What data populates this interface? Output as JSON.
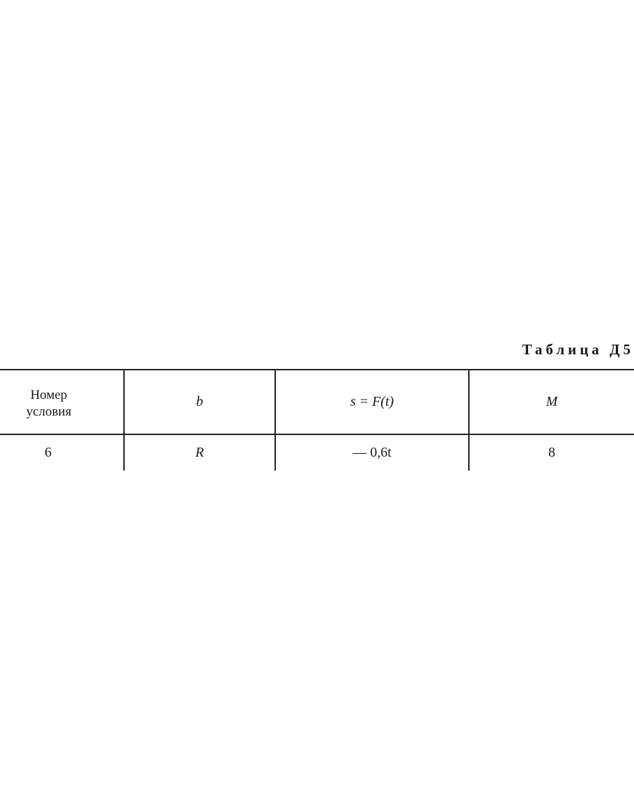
{
  "table": {
    "title": "Таблица Д5",
    "headers": [
      "Номер условия",
      "b",
      "s = F(t)",
      "M"
    ],
    "rows": [
      [
        "6",
        "R",
        "— 0,6t",
        "8"
      ]
    ]
  }
}
